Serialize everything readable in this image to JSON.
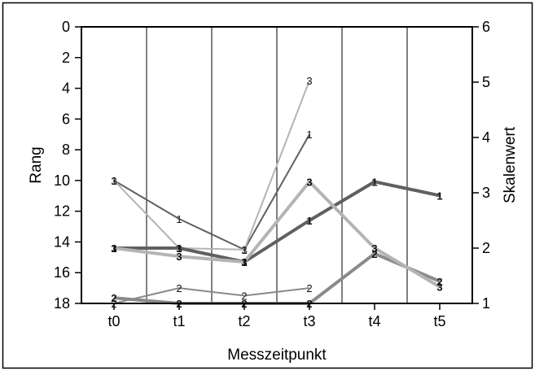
{
  "chart_data": {
    "type": "line",
    "xlabel": "Messzeitpunkt",
    "ylabel_left": "Rang",
    "ylabel_right": "Skalenwert",
    "categories": [
      "t0",
      "t1",
      "t2",
      "t3",
      "t4",
      "t5"
    ],
    "ylim_left": [
      18,
      0
    ],
    "left_ticks": [
      "0",
      "2",
      "4",
      "6",
      "8",
      "10",
      "12",
      "14",
      "16",
      "18"
    ],
    "ylim_right": [
      1,
      6
    ],
    "right_ticks": [
      "1",
      "2",
      "3",
      "4",
      "5",
      "6"
    ],
    "colors": {
      "dark": "#606060",
      "mid": "#8a8a8a",
      "light": "#b4b4b4"
    },
    "series": [
      {
        "label": "1",
        "axis": "rank",
        "tone": "dark",
        "width": "thin",
        "bold": false,
        "values": [
          10.0,
          12.5,
          14.5,
          7.0,
          null,
          null
        ]
      },
      {
        "label": "2",
        "axis": "rank",
        "tone": "mid",
        "width": "thin",
        "bold": false,
        "values": [
          18.0,
          17.0,
          17.5,
          17.0,
          null,
          null
        ]
      },
      {
        "label": "3",
        "axis": "rank",
        "tone": "light",
        "width": "thin",
        "bold": false,
        "values": [
          10.0,
          14.4,
          14.5,
          3.5,
          null,
          null
        ]
      },
      {
        "label": "1",
        "axis": "scale",
        "tone": "dark",
        "width": "thick",
        "bold": true,
        "values": [
          2.0,
          2.0,
          1.75,
          2.5,
          3.2,
          2.95
        ]
      },
      {
        "label": "2",
        "axis": "scale",
        "tone": "mid",
        "width": "thick",
        "bold": true,
        "values": [
          1.1,
          1.0,
          1.0,
          1.0,
          1.9,
          1.4
        ]
      },
      {
        "label": "3",
        "axis": "scale",
        "tone": "light",
        "width": "thick",
        "bold": true,
        "values": [
          2.0,
          1.85,
          1.75,
          3.2,
          2.0,
          1.3
        ]
      }
    ]
  }
}
